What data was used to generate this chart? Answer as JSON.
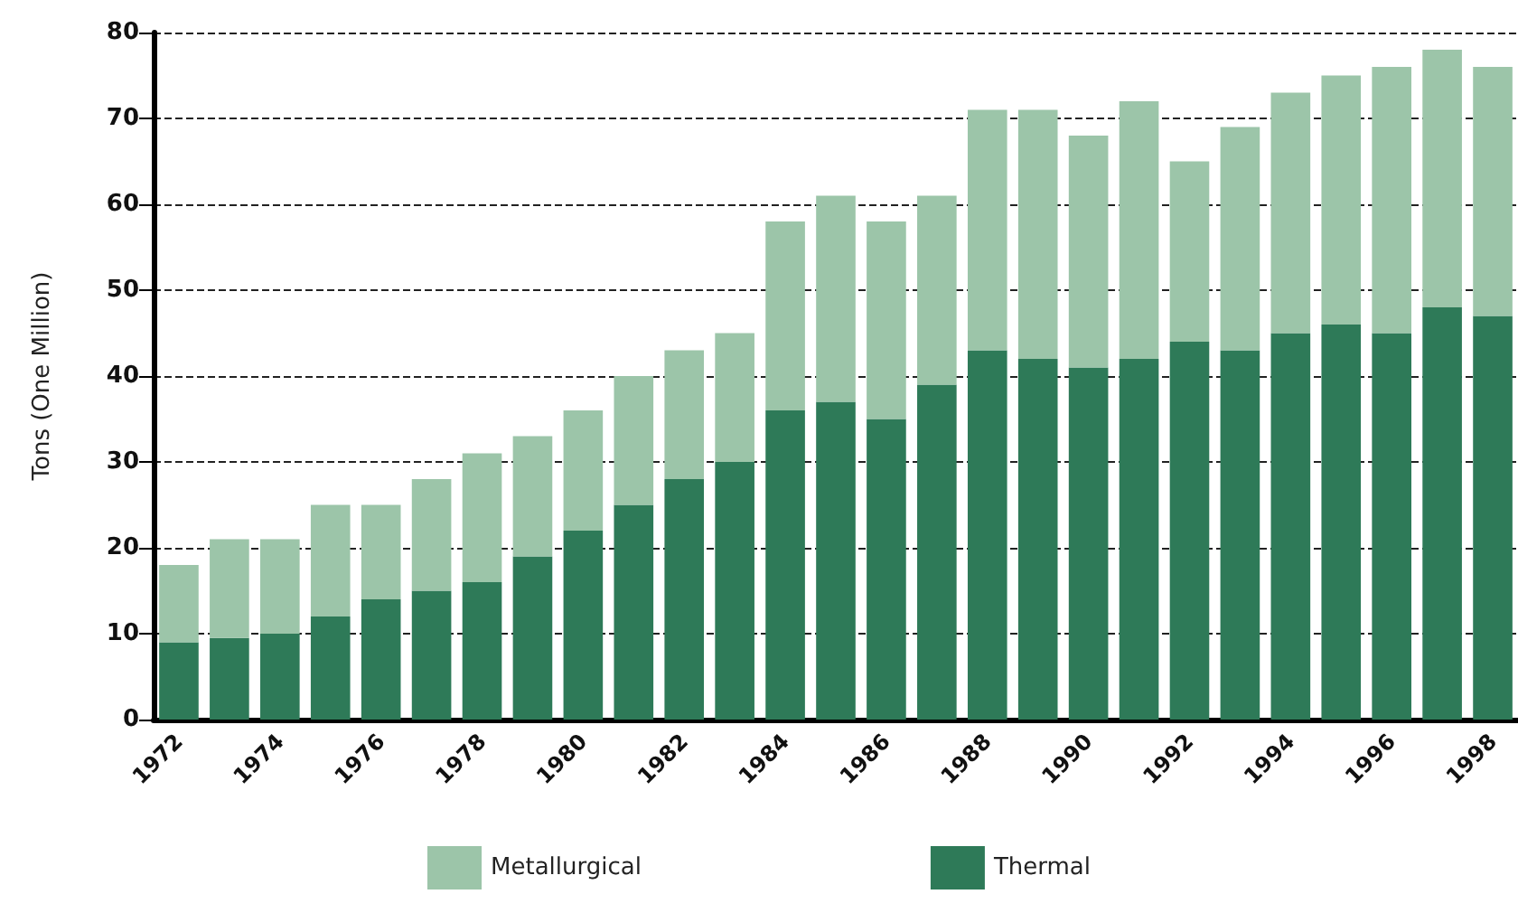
{
  "chart_data": {
    "type": "bar",
    "stacked": true,
    "ylabel": "Tons (One Million)",
    "categories": [
      "1972",
      null,
      "1974",
      null,
      "1976",
      null,
      "1978",
      null,
      "1980",
      null,
      "1982",
      null,
      "1984",
      null,
      "1986",
      null,
      "1988",
      null,
      "1990",
      null,
      "1992",
      null,
      "1994",
      null,
      "1996",
      null,
      "1998"
    ],
    "series": [
      {
        "name": "Thermal",
        "color": "#2e7a58",
        "values": [
          9,
          9.5,
          10,
          12,
          14,
          15,
          16,
          19,
          22,
          25,
          28,
          30,
          36,
          37,
          35,
          39,
          43,
          42,
          41,
          42,
          44,
          43,
          45,
          46,
          45,
          48,
          47
        ]
      },
      {
        "name": "Metallurgical",
        "color": "#9cc5a9",
        "values": [
          9,
          11.5,
          11,
          13,
          11,
          13,
          15,
          14,
          14,
          15,
          15,
          15,
          22,
          24,
          23,
          22,
          28,
          29,
          27,
          30,
          21,
          26,
          28,
          29,
          31,
          30,
          29
        ]
      }
    ],
    "ylim": [
      0,
      80
    ],
    "yticks": [
      0,
      10,
      20,
      30,
      40,
      50,
      60,
      70,
      80
    ],
    "grid": "y",
    "legend": "bottom"
  }
}
